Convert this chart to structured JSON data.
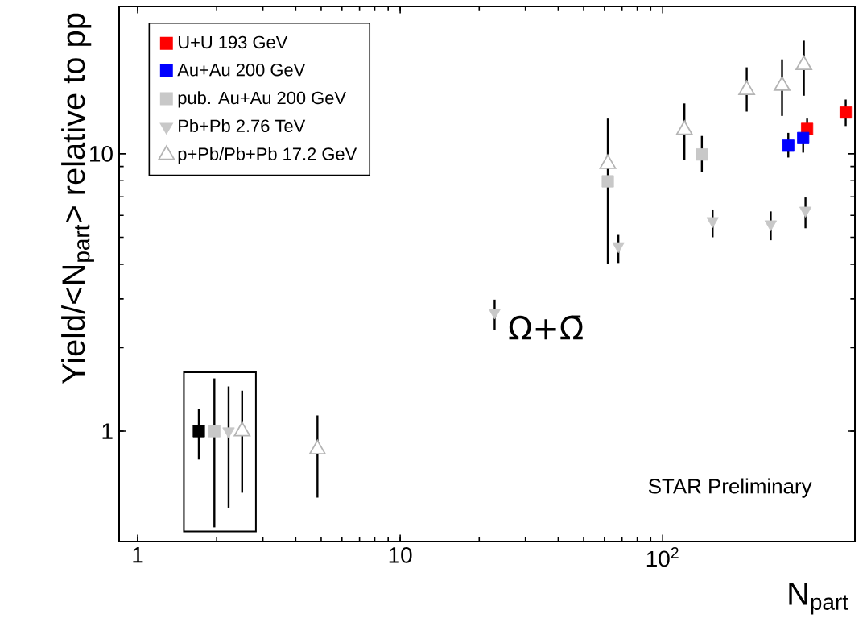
{
  "chart_data": {
    "type": "scatter",
    "xlabel": "N$_{part}$",
    "ylabel": "Yield/<N$_{part}$> relative to pp",
    "log": "xy",
    "xlim": [
      0.85,
      540
    ],
    "ylim": [
      0.4,
      34
    ],
    "xticks": [
      1,
      10,
      {
        "value": 100,
        "label": "10$^{2}$"
      }
    ],
    "yticks": [
      1,
      10
    ],
    "legend": "top left",
    "grid": false,
    "series": [
      {
        "name": "U+U 193 GeV",
        "color": "#ff0000",
        "marker": "square",
        "x": [
          355,
          498
        ],
        "values": [
          12.3,
          14.1
        ],
        "errors": [
          [
            11.1,
            13.4
          ],
          [
            12.6,
            15.7
          ]
        ]
      },
      {
        "name": "Au+Au 200 GeV",
        "color": "#0000ff",
        "marker": "square",
        "x": [
          301,
          343
        ],
        "values": [
          10.7,
          11.4
        ],
        "errors": [
          [
            9.7,
            11.9
          ],
          [
            10.1,
            12.8
          ]
        ]
      },
      {
        "name": "pub. Au+Au 200 GeV",
        "color": "#c8c8c8",
        "marker": "square",
        "x": [
          1.96,
          61.8,
          141
        ],
        "values": [
          1,
          7.96,
          9.95
        ],
        "errors": [
          [
            0.45,
            1.55
          ],
          [
            4.0,
            13.4
          ],
          [
            8.6,
            11.6
          ]
        ]
      },
      {
        "name": "Pb+Pb 2.76 TeV",
        "color": "#c8c8c8",
        "marker": "triangle-down",
        "x": [
          2.22,
          22.9,
          67.8,
          155,
          258,
          350
        ],
        "values": [
          1,
          2.68,
          4.65,
          5.73,
          5.58,
          6.25
        ],
        "errors": [
          [
            0.53,
            1.45
          ],
          [
            2.31,
            2.98
          ],
          [
            4.04,
            5.1
          ],
          [
            5.0,
            6.3
          ],
          [
            4.88,
            6.2
          ],
          [
            5.39,
            6.96
          ]
        ]
      },
      {
        "name": "p+Pb/Pb+Pb 17.2 GeV",
        "color": "#b4b4b4",
        "marker": "triangle",
        "x": [
          2.5,
          4.84,
          61.8,
          121,
          209,
          285,
          345
        ],
        "values": [
          1,
          0.86,
          9.2,
          12.2,
          17.0,
          17.6,
          20.9
        ],
        "errors": [
          [
            0.6,
            1.4
          ],
          [
            0.576,
            1.14
          ],
          null,
          [
            9.5,
            15.2
          ],
          [
            14.2,
            20.5
          ],
          [
            13.7,
            21.9
          ],
          [
            16.2,
            25.6
          ]
        ]
      },
      {
        "color": "#000000",
        "marker": "square",
        "x": [
          1.71
        ],
        "values": [
          1
        ],
        "errors": [
          [
            0.79,
            1.2
          ]
        ]
      }
    ],
    "annotations": [
      "Ω+Ω̄",
      "STAR Preliminary"
    ]
  }
}
